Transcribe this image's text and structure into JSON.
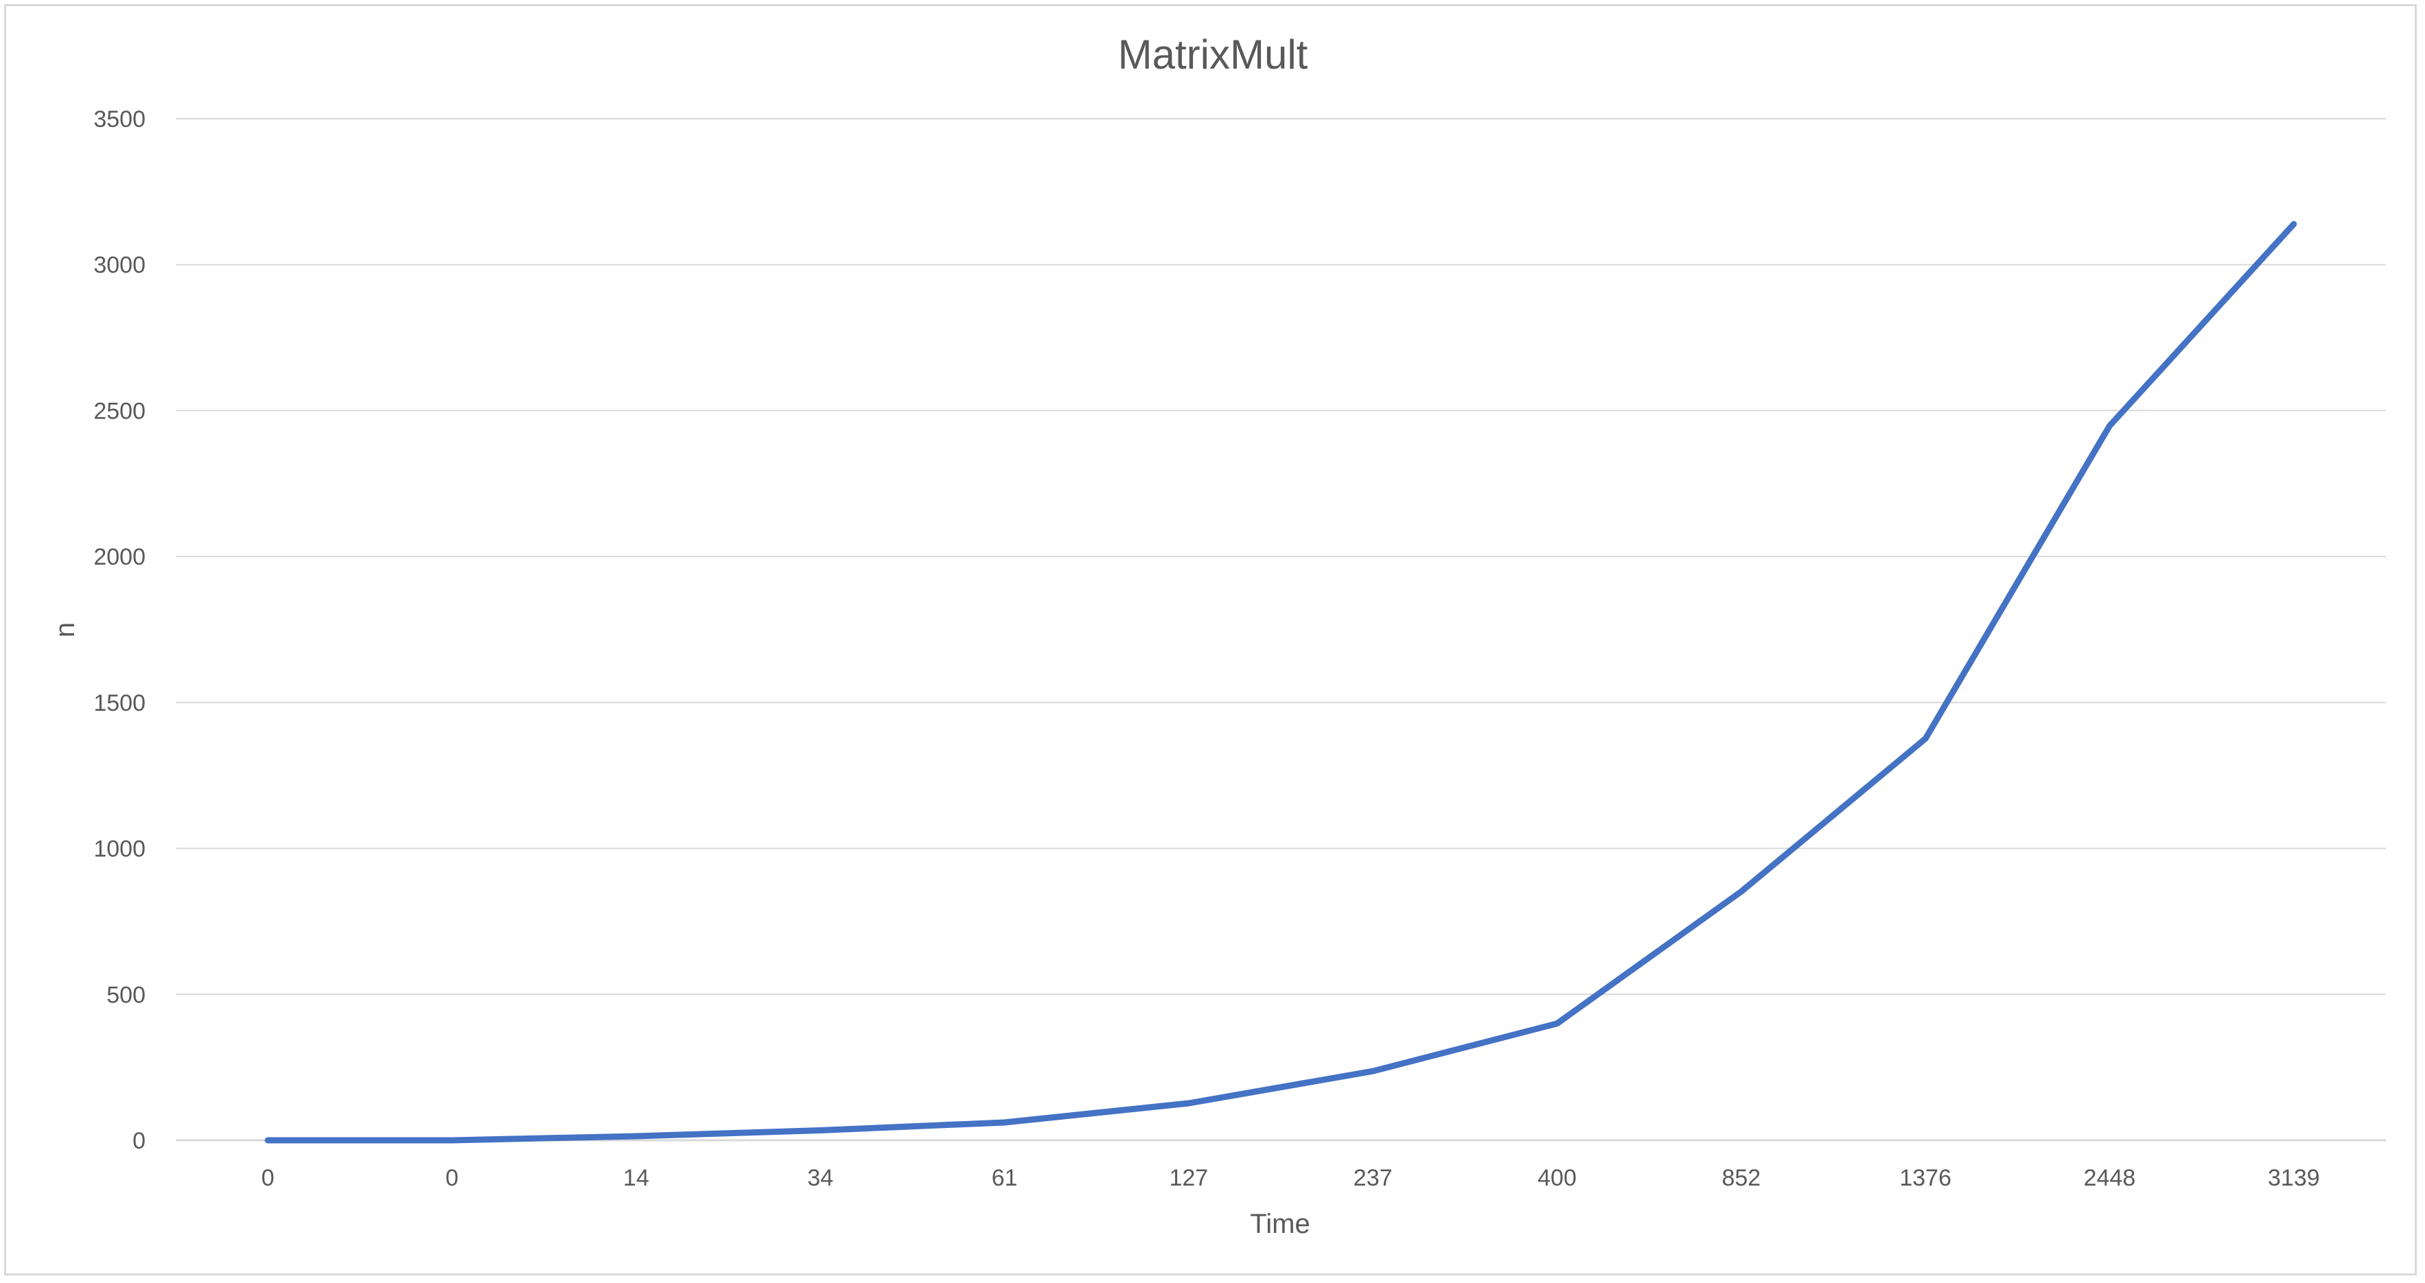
{
  "chart_data": {
    "type": "line",
    "title": "MatrixMult",
    "xlabel": "Time",
    "ylabel": "n",
    "categories": [
      "0",
      "0",
      "14",
      "34",
      "61",
      "127",
      "237",
      "400",
      "852",
      "1376",
      "2448",
      "3139"
    ],
    "series": [
      {
        "color": "#4472c4",
        "values": [
          0,
          0,
          14,
          34,
          61,
          127,
          237,
          400,
          852,
          1376,
          2448,
          3139
        ]
      }
    ],
    "ylim": [
      0,
      3500
    ],
    "yticks": [
      0,
      500,
      1000,
      1500,
      2000,
      2500,
      3000,
      3500
    ],
    "ytick_labels": [
      "0",
      "500",
      "1000",
      "1500",
      "2000",
      "2500",
      "3000",
      "3500"
    ],
    "grid": true,
    "legend": "none"
  }
}
